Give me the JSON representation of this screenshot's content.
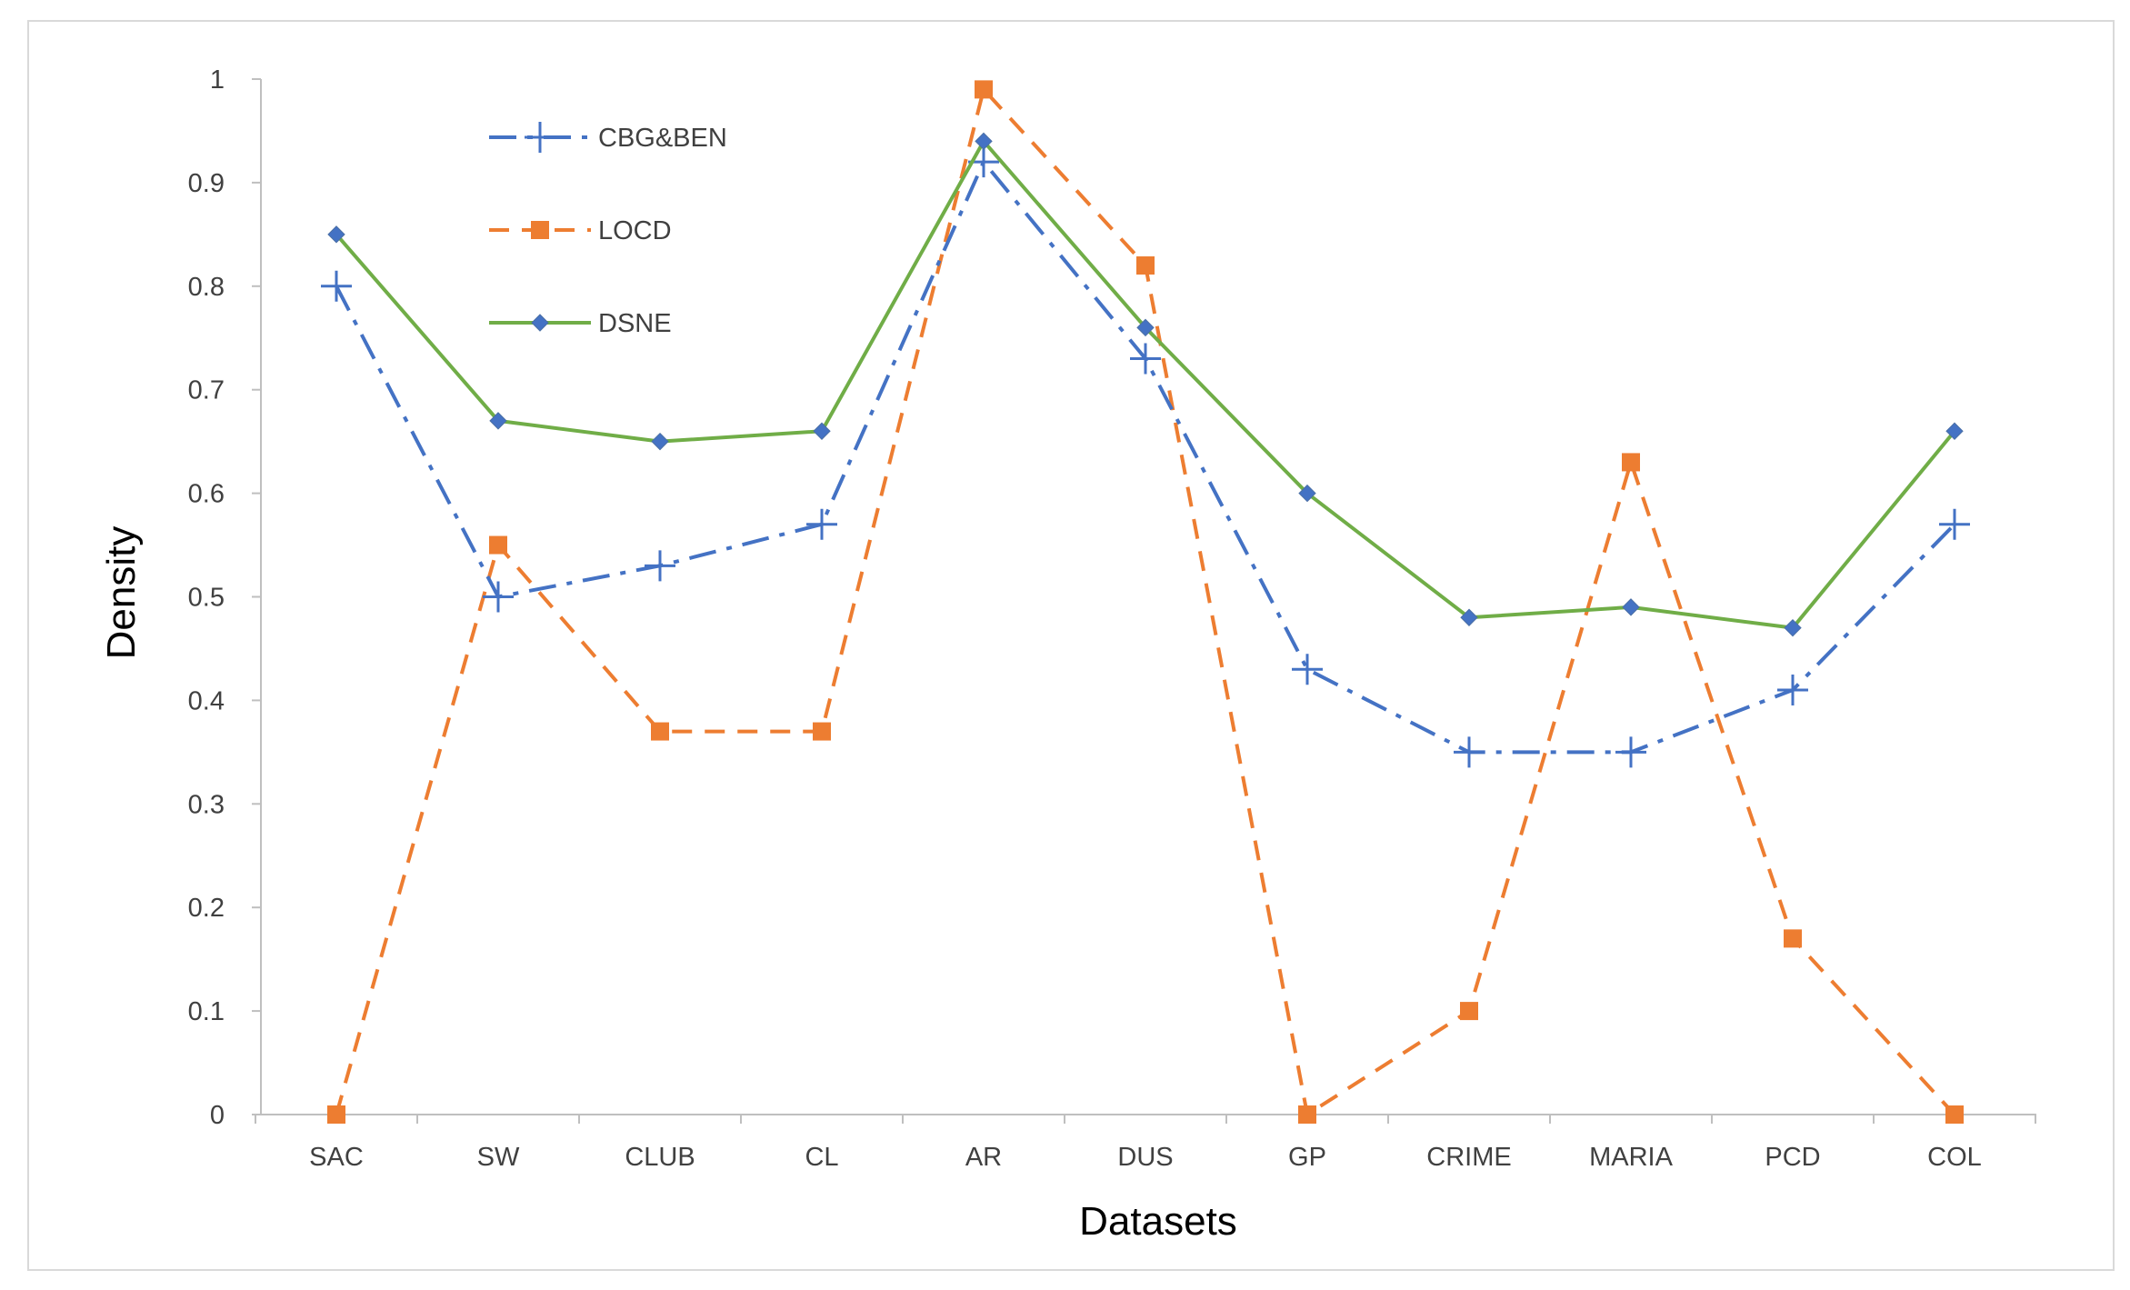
{
  "chart_data": {
    "type": "line",
    "title": "",
    "xlabel": "Datasets",
    "ylabel": "Density",
    "ylim": [
      0,
      1
    ],
    "yticks": [
      "0",
      "0.1",
      "0.2",
      "0.3",
      "0.4",
      "0.5",
      "0.6",
      "0.7",
      "0.8",
      "0.9",
      "1"
    ],
    "grid": false,
    "legend_position": "top-left",
    "categories": [
      "SAC",
      "SW",
      "CLUB",
      "CL",
      "AR",
      "DUS",
      "GP",
      "CRIME",
      "MARIA",
      "PCD",
      "COL"
    ],
    "series": [
      {
        "name": "CBG&BEN",
        "color": "#4472c4",
        "line_style": "dash-dot",
        "marker": "plus",
        "values": [
          0.8,
          0.5,
          0.53,
          0.57,
          0.92,
          0.73,
          0.43,
          0.35,
          0.35,
          0.41,
          0.57
        ]
      },
      {
        "name": "LOCD",
        "color": "#ed7d31",
        "line_style": "dashed",
        "marker": "square",
        "values": [
          0.0,
          0.55,
          0.37,
          0.37,
          0.99,
          0.82,
          0.0,
          0.1,
          0.63,
          0.17,
          0.0
        ]
      },
      {
        "name": "DSNE",
        "color": "#70ad47",
        "marker_color": "#4472c4",
        "line_style": "solid",
        "marker": "diamond",
        "values": [
          0.85,
          0.67,
          0.65,
          0.66,
          0.94,
          0.76,
          0.6,
          0.48,
          0.49,
          0.47,
          0.66
        ]
      }
    ]
  }
}
